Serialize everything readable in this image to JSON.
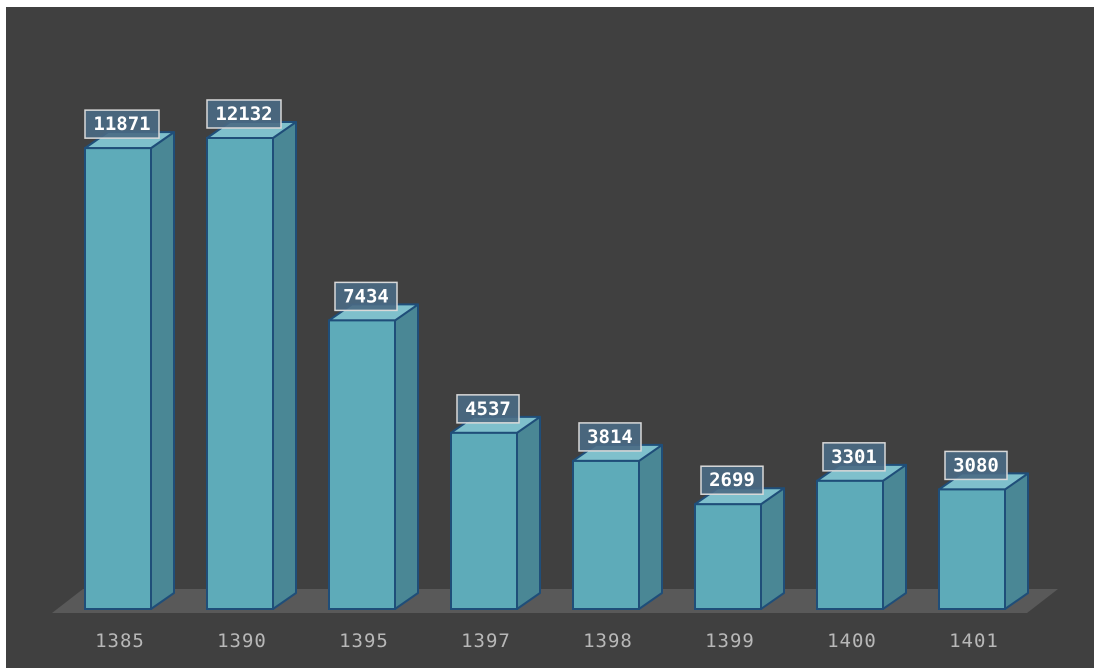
{
  "chart_data": {
    "type": "bar",
    "style": "3d-column",
    "categories": [
      "1385",
      "1390",
      "1395",
      "1397",
      "1398",
      "1399",
      "1400",
      "1401"
    ],
    "values": [
      11871,
      12132,
      7434,
      4537,
      3814,
      2699,
      3301,
      3080
    ],
    "title": "",
    "xlabel": "",
    "ylabel": "",
    "ylim": [
      0,
      12132
    ],
    "grid": false,
    "legend": "none",
    "colors": {
      "background": "#404040",
      "border": "#ffffff",
      "floor": "#595959",
      "bar_front": "#5eabb9",
      "bar_side": "#4a8795",
      "bar_top": "#7fc0cc",
      "bar_edge": "#1f4e79",
      "label_box": "#4a6a84",
      "label_border": "#d9d9d9",
      "label_text": "#ffffff",
      "tick_text": "#b8b8b8"
    }
  }
}
